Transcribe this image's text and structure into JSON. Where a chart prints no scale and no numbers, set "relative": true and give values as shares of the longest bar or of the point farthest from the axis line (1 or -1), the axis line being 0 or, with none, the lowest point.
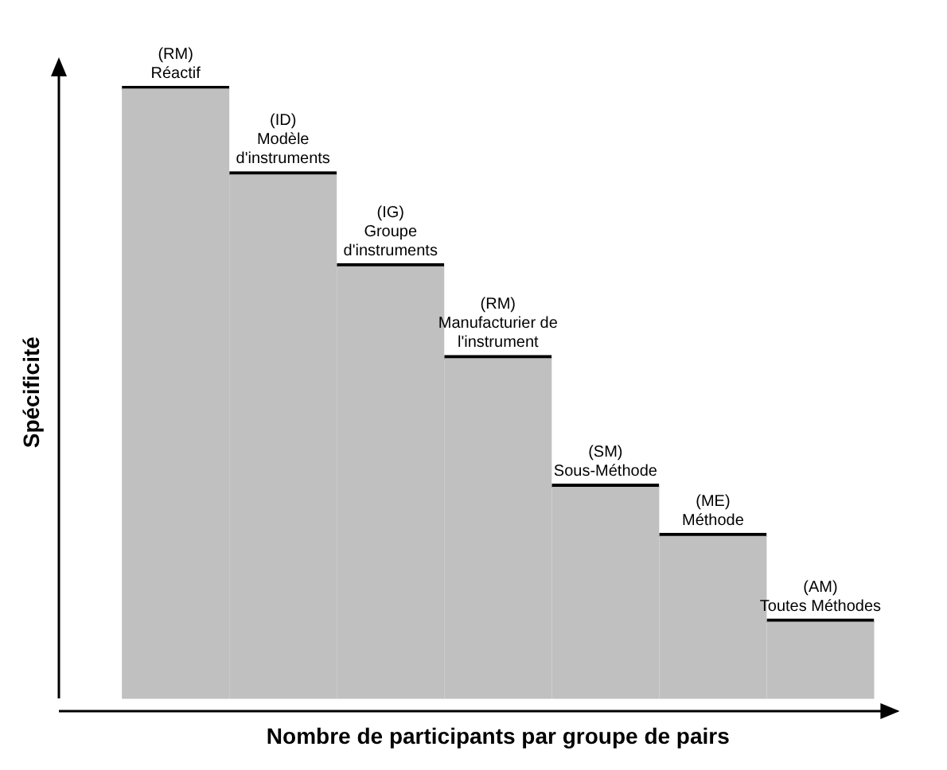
{
  "chart_data": {
    "type": "bar",
    "xlabel": "Nombre de participants par groupe de pairs",
    "ylabel": "Spécificité",
    "relative": true,
    "categories": [
      "(RM)\nRéactif",
      "(ID)\nModèle\nd'instruments",
      "(IG)\nGroupe\nd'instruments",
      "(RM)\nManufacturier de\nl'instrument",
      "(SM)\nSous-Méthode",
      "(ME)\nMéthode",
      "(AM)\nToutes Méthodes"
    ],
    "series": [
      {
        "color": "#c0c0c0",
        "values": [
          1,
          0.86,
          0.71,
          0.56,
          0.35,
          0.27,
          0.13
        ]
      }
    ],
    "data_labels": false,
    "grid": false,
    "legend": false
  }
}
